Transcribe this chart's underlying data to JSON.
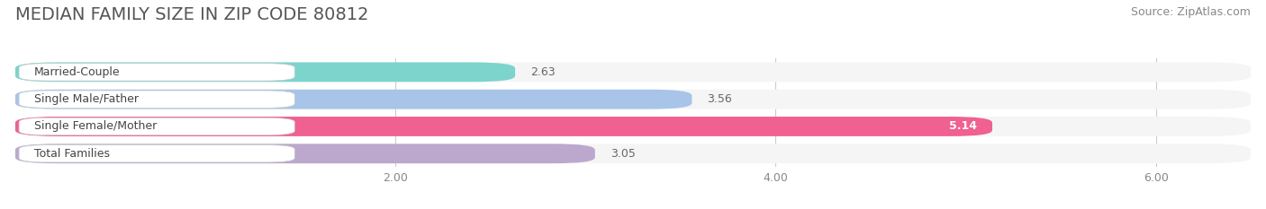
{
  "title": "MEDIAN FAMILY SIZE IN ZIP CODE 80812",
  "source": "Source: ZipAtlas.com",
  "categories": [
    "Married-Couple",
    "Single Male/Father",
    "Single Female/Mother",
    "Total Families"
  ],
  "values": [
    2.63,
    3.56,
    5.14,
    3.05
  ],
  "bar_colors": [
    "#7DD4CC",
    "#A8C4E8",
    "#F06090",
    "#BBA8CC"
  ],
  "value_inside": [
    false,
    false,
    true,
    false
  ],
  "xlim": [
    0,
    6.5
  ],
  "xstart": 0.0,
  "xticks": [
    2.0,
    4.0,
    6.0
  ],
  "xtick_labels": [
    "2.00",
    "4.00",
    "6.00"
  ],
  "bg_color": "#ffffff",
  "bar_bg_color": "#e8e8e8",
  "bar_row_bg": "#f5f5f5",
  "bar_height": 0.72,
  "title_fontsize": 14,
  "source_fontsize": 9,
  "label_fontsize": 9,
  "value_fontsize": 9,
  "tick_fontsize": 9,
  "grid_color": "#cccccc",
  "label_bg_color": "#ffffff"
}
